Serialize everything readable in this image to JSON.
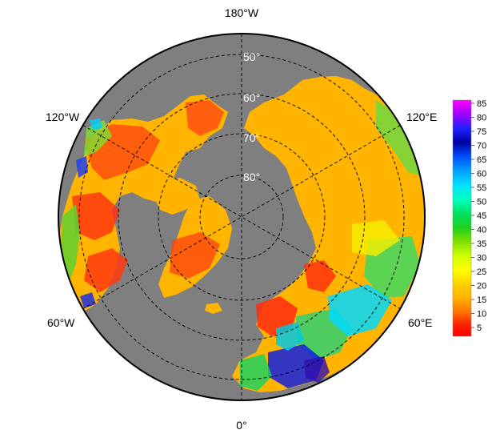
{
  "map": {
    "longitude_labels": [
      {
        "id": "lon-180w",
        "text": "180°W"
      },
      {
        "id": "lon-120e",
        "text": "120°E"
      },
      {
        "id": "lon-120w",
        "text": "120°W"
      },
      {
        "id": "lon-60e",
        "text": "60°E"
      },
      {
        "id": "lon-60w",
        "text": "60°W"
      },
      {
        "id": "lon-0",
        "text": "0°"
      }
    ],
    "latitude_labels": [
      {
        "id": "lat-50",
        "text": "50°"
      },
      {
        "id": "lat-60",
        "text": "60°"
      },
      {
        "id": "lat-70",
        "text": "70°"
      },
      {
        "id": "lat-80",
        "text": "80°"
      }
    ],
    "colors": {
      "ocean": "#7f7f7f",
      "border": "#000000",
      "grid": "#000000",
      "base_land": "#ffb400"
    }
  },
  "colorbar": {
    "ticks": [
      "85",
      "80",
      "75",
      "70",
      "65",
      "60",
      "55",
      "50",
      "45",
      "40",
      "35",
      "30",
      "25",
      "20",
      "15",
      "10",
      "5"
    ],
    "gradient": [
      "#ff00ff",
      "#a000ff",
      "#2020ff",
      "#0000a0",
      "#0050ff",
      "#00a0ff",
      "#00e0ff",
      "#00ffc0",
      "#00e060",
      "#20d020",
      "#80e000",
      "#d0ff00",
      "#ffff00",
      "#ffd000",
      "#ffb000",
      "#ff7000",
      "#ff2000",
      "#ff0000"
    ]
  }
}
